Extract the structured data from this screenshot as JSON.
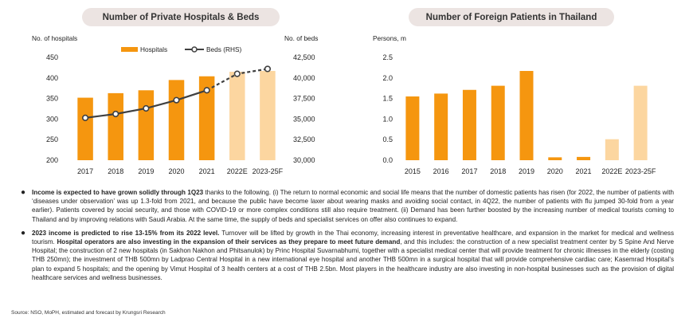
{
  "colors": {
    "bar_actual": "#f5960f",
    "bar_forecast": "#fcd6a0",
    "line": "#404040",
    "pill_bg": "#ece4e2"
  },
  "chart_data": [
    {
      "type": "bar",
      "title": "Number of Private Hospitals & Beds",
      "y_left_label": "No. of hospitals",
      "y_right_label": "No. of beds",
      "categories": [
        "2017",
        "2018",
        "2019",
        "2020",
        "2021",
        "2022E",
        "2023-25F"
      ],
      "ylim_left": [
        200,
        450
      ],
      "y_left_ticks": [
        "200",
        "250",
        "300",
        "350",
        "400",
        "450"
      ],
      "ylim_right": [
        30000,
        42500
      ],
      "y_right_ticks": [
        "30,000",
        "32,500",
        "35,000",
        "37,500",
        "40,000",
        "42,500"
      ],
      "forecast_from_index": 5,
      "legend": {
        "placement": "top",
        "bars": "Hospitals",
        "line": "Beds (RHS)"
      },
      "series": [
        {
          "name": "Hospitals",
          "type": "bar",
          "axis": "left",
          "values": [
            352,
            363,
            370,
            395,
            404,
            415,
            417
          ]
        },
        {
          "name": "Beds (RHS)",
          "type": "line",
          "axis": "right",
          "values": [
            35150,
            35620,
            36300,
            37300,
            38500,
            40500,
            41100
          ]
        }
      ],
      "grid": false
    },
    {
      "type": "bar",
      "title": "Number of Foreign Patients in Thailand",
      "y_label": "Persons, m",
      "categories": [
        "2015",
        "2016",
        "2017",
        "2018",
        "2019",
        "2020",
        "2021",
        "2022E",
        "2023-25F"
      ],
      "ylim": [
        0,
        2.5
      ],
      "y_ticks": [
        "0.0",
        "0.5",
        "1.0",
        "1.5",
        "2.0",
        "2.5"
      ],
      "forecast_from_index": 7,
      "series": [
        {
          "name": "",
          "values": [
            1.55,
            1.62,
            1.71,
            1.81,
            2.17,
            0.07,
            0.08,
            0.51,
            1.81
          ]
        }
      ],
      "grid": false
    }
  ],
  "bullets": [
    {
      "bold": "Income is expected to have grown solidly through 1Q23",
      "text": " thanks to the following. (i) The return to normal economic and social life means that the number of domestic patients has risen (for 2022, the number of patients with ‘diseases under observation’ was up 1.3-fold from 2021, and because the public have become laxer about wearing masks and avoiding social contact, in 4Q22, the number of patients with flu jumped 30-fold from a year earlier). Patients covered by social security, and those with COVID-19 or more complex conditions still also require treatment. (ii) Demand has been further boosted by the increasing number of medical tourists coming to Thailand and by improving relations with Saudi Arabia. At the same time, the supply of beds and specialist services on offer also continues to expand."
    },
    {
      "bold": "2023 income is predicted to rise 13-15% from its 2022 level.",
      "text": " Turnover will be lifted by growth in the Thai economy, increasing interest in preventative healthcare, and expansion in the market for medical and wellness tourism. ",
      "bold2": "Hospital operators are also investing in the expansion of their services as they prepare to meet future demand",
      "text2": ", and this includes: the construction of a new specialist treatment center by S Spine And Nerve Hospital; the construction of 2 new hospitals (in Sakhon Nakhon and Phitsanulok) by Princ Hospital Suvarnabhumi, together with a specialist medical center that will provide treatment for chronic illnesses in the elderly (costing THB 250mn); the investment of THB 500mn by Ladprao Central Hospital in a new international eye hospital and another THB 500mn in a surgical hospital that will provide comprehensive cardiac care; Kasemrad Hospital’s plan to expand 5 hospitals; and the opening by Vimut Hospital of 3 health centers at a cost of THB 2.5bn. Most players in the healthcare industry are also investing in non-hospital businesses such as the provision of digital healthcare services and wellness businesses."
    }
  ],
  "source": "Source: NSO, MoPH,  estimated and forecast by Krungsri Research",
  "bullet_symbol": "●"
}
